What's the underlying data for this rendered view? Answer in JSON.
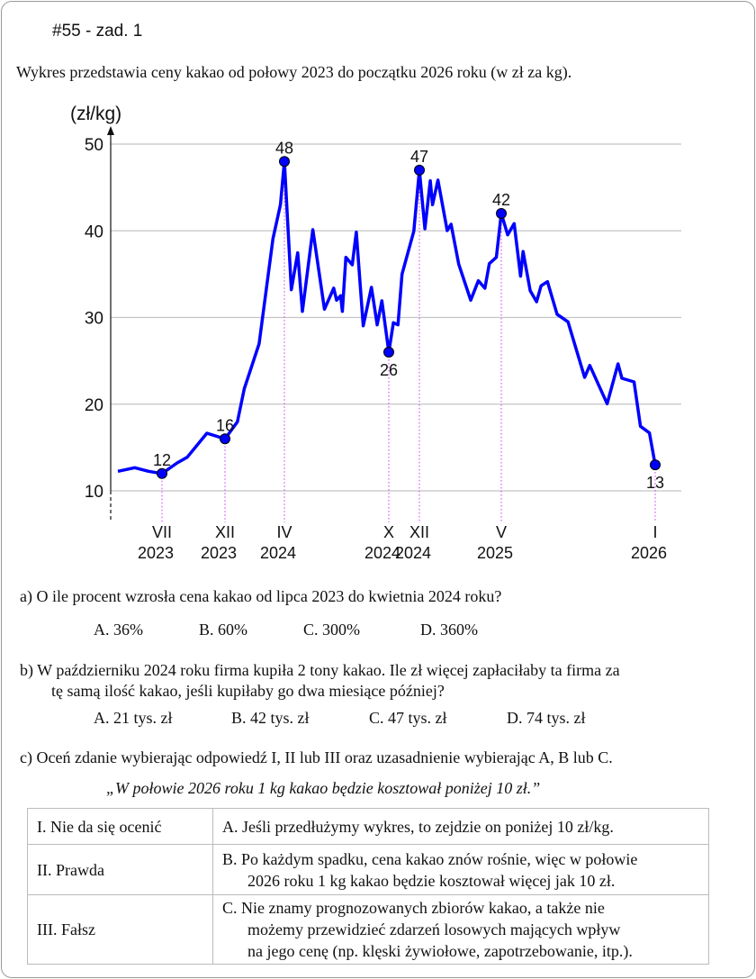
{
  "header": {
    "title": "#55 - zad. 1",
    "intro": "Wykres przedstawia ceny kakao od połowy 2023 do początku 2026 roku (w zł za kg)."
  },
  "chart_data": {
    "type": "line",
    "ylabel": "(zł/kg)",
    "ylim": [
      10,
      50
    ],
    "yticks": [
      10,
      20,
      30,
      40,
      50
    ],
    "grid": true,
    "line_color": "#0000ff",
    "marker_line_color": "#cc33ff",
    "xtick_labels": [
      {
        "month": "VII",
        "year": "2023",
        "date": "2023-07-01"
      },
      {
        "month": "XII",
        "year": "2023",
        "date": "2023-12-01"
      },
      {
        "month": "IV",
        "year": "2024",
        "date": "2024-04-01"
      },
      {
        "month": "X",
        "year": "2024",
        "date": "2024-10-01"
      },
      {
        "month": "XII",
        "year": "2024",
        "date": "2024-12-01"
      },
      {
        "month": "V",
        "year": "2025",
        "date": "2025-05-01"
      },
      {
        "month": "I",
        "year": "2026",
        "date": "2026-01-01"
      }
    ],
    "highlighted": [
      {
        "date": "2023-07-01",
        "value": 12,
        "label": "12",
        "pos": "above"
      },
      {
        "date": "2023-12-01",
        "value": 16,
        "label": "16",
        "pos": "above"
      },
      {
        "date": "2024-04-01",
        "value": 48,
        "label": "48",
        "pos": "above"
      },
      {
        "date": "2024-10-01",
        "value": 26,
        "label": "26",
        "pos": "below"
      },
      {
        "date": "2024-12-01",
        "value": 47,
        "label": "47",
        "pos": "above"
      },
      {
        "date": "2025-05-01",
        "value": 42,
        "label": "42",
        "pos": "above"
      },
      {
        "date": "2026-01-01",
        "value": 13,
        "label": "13",
        "pos": "below"
      }
    ],
    "series": [
      {
        "points": [
          [
            "2023-03-16",
            12.25
          ],
          [
            "2023-04-26",
            12.67
          ],
          [
            "2023-05-29",
            12.25
          ],
          [
            "2023-07-01",
            12
          ],
          [
            "2023-08-07",
            13.22
          ],
          [
            "2023-09-01",
            13.88
          ],
          [
            "2023-10-18",
            16.65
          ],
          [
            "2023-12-01",
            16
          ],
          [
            "2023-12-26",
            17.97
          ],
          [
            "2024-01-10",
            21.77
          ],
          [
            "2024-02-10",
            26.97
          ],
          [
            "2024-03-08",
            39.09
          ],
          [
            "2024-03-23",
            43.01
          ],
          [
            "2024-04-01",
            48
          ],
          [
            "2024-04-13",
            33.2
          ],
          [
            "2024-04-24",
            37.46
          ],
          [
            "2024-05-02",
            30.71
          ],
          [
            "2024-05-20",
            40.13
          ],
          [
            "2024-06-10",
            30.96
          ],
          [
            "2024-06-26",
            33.38
          ],
          [
            "2024-07-01",
            32.0
          ],
          [
            "2024-07-08",
            32.51
          ],
          [
            "2024-07-11",
            30.71
          ],
          [
            "2024-07-17",
            36.94
          ],
          [
            "2024-07-28",
            36.08
          ],
          [
            "2024-08-05",
            39.85
          ],
          [
            "2024-08-17",
            29.04
          ],
          [
            "2024-09-01",
            33.48
          ],
          [
            "2024-09-11",
            29.15
          ],
          [
            "2024-09-19",
            31.92
          ],
          [
            "2024-10-01",
            26
          ],
          [
            "2024-10-10",
            29.4
          ],
          [
            "2024-10-19",
            29.15
          ],
          [
            "2024-10-27",
            35.0
          ],
          [
            "2024-11-20",
            39.95
          ],
          [
            "2024-12-01",
            47
          ],
          [
            "2024-12-11",
            40.23
          ],
          [
            "2024-12-21",
            45.77
          ],
          [
            "2024-12-25",
            43.01
          ],
          [
            "2025-01-05",
            45.84
          ],
          [
            "2025-01-22",
            40.03
          ],
          [
            "2025-01-29",
            40.75
          ],
          [
            "2025-02-13",
            36.15
          ],
          [
            "2025-03-05",
            32.0
          ],
          [
            "2025-03-19",
            34.24
          ],
          [
            "2025-04-01",
            33.38
          ],
          [
            "2025-04-09",
            36.21
          ],
          [
            "2025-04-22",
            36.94
          ],
          [
            "2025-05-01",
            42
          ],
          [
            "2025-05-11",
            39.54
          ],
          [
            "2025-05-21",
            40.83
          ],
          [
            "2025-05-31",
            34.76
          ],
          [
            "2025-06-05",
            37.6
          ],
          [
            "2025-06-16",
            33.1
          ],
          [
            "2025-06-26",
            31.82
          ],
          [
            "2025-07-03",
            33.66
          ],
          [
            "2025-07-13",
            34.14
          ],
          [
            "2025-07-28",
            30.36
          ],
          [
            "2025-08-15",
            29.5
          ],
          [
            "2025-09-11",
            23.09
          ],
          [
            "2025-09-19",
            24.47
          ],
          [
            "2025-10-16",
            20.05
          ],
          [
            "2025-11-03",
            24.65
          ],
          [
            "2025-11-09",
            22.99
          ],
          [
            "2025-11-28",
            22.57
          ],
          [
            "2025-12-08",
            17.45
          ],
          [
            "2025-12-22",
            16.68
          ],
          [
            "2026-01-01",
            13
          ]
        ]
      }
    ]
  },
  "questions": {
    "a": {
      "prompt": "a)  O ile procent wzrosła cena kakao od lipca 2023 do kwietnia 2024 roku?",
      "options": [
        "A.  36%",
        "B.  60%",
        "C.  300%",
        "D.  360%"
      ]
    },
    "b": {
      "prompt_line1": "b)  W październiku 2024 roku firma kupiła 2 tony kakao. Ile zł więcej zapłaciłaby ta firma za",
      "prompt_line2": "tę samą ilość kakao, jeśli kupiłaby go dwa miesiące później?",
      "options": [
        "A.  21 tys. zł",
        "B.  42 tys. zł",
        "C.  47 tys. zł",
        "D.  74 tys. zł"
      ]
    },
    "c": {
      "prompt": "c)  Oceń zdanie wybierając odpowiedź I, II lub III oraz uzasadnienie wybierając A, B lub C.",
      "quote": "„W połowie 2026 roku 1 kg kakao będzie kosztował poniżej 10 zł.”",
      "table": [
        {
          "left": "I.  Nie da się ocenić",
          "right": [
            "A.  Jeśli przedłużymy wykres, to zejdzie on poniżej 10 zł/kg."
          ]
        },
        {
          "left": "II.  Prawda",
          "right": [
            "B.  Po każdym spadku, cena kakao znów rośnie, więc w połowie",
            "2026 roku 1 kg kakao będzie kosztował więcej jak 10 zł."
          ]
        },
        {
          "left": "III.  Fałsz",
          "right": [
            "C.  Nie znamy prognozowanych zbiorów kakao, a także nie",
            "możemy przewidzieć zdarzeń losowych mających wpływ",
            "na jego cenę (np. klęski żywiołowe, zapotrzebowanie, itp.)."
          ]
        }
      ]
    }
  }
}
